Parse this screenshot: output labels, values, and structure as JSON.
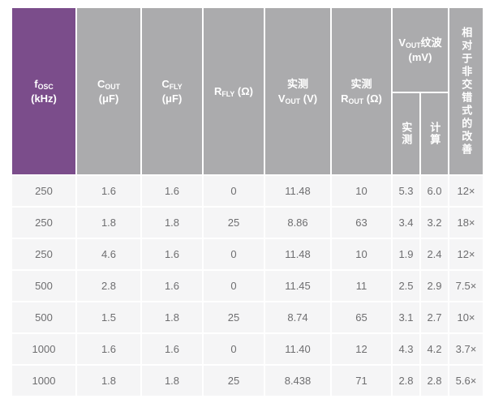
{
  "table": {
    "headers": {
      "fosc": {
        "base": "f",
        "sub": "OSC",
        "line2": "(kHz)"
      },
      "cout": {
        "base": "C",
        "sub": "OUT",
        "line2": "(μF)"
      },
      "cfly": {
        "base": "C",
        "sub": "FLY",
        "line2": "(μF)"
      },
      "rfly": {
        "base": "R",
        "sub": "FLY",
        "rest": " (Ω)"
      },
      "vout": {
        "line1": "实测",
        "base": "V",
        "sub": "OUT",
        "rest": " (V)"
      },
      "rout": {
        "line1": "实测",
        "base": "R",
        "sub": "OUT",
        "rest": " (Ω)"
      },
      "ripple": {
        "base": "V",
        "sub": "OUT",
        "rest": "纹波 (mV)"
      },
      "ripple_measured": "实测",
      "ripple_calculated": "计算",
      "improvement": "相对于非交错式的改善"
    },
    "rows": [
      [
        "250",
        "1.6",
        "1.6",
        "0",
        "11.48",
        "10",
        "5.3",
        "6.0",
        "12×"
      ],
      [
        "250",
        "1.8",
        "1.8",
        "25",
        "8.86",
        "63",
        "3.4",
        "3.2",
        "18×"
      ],
      [
        "250",
        "4.6",
        "1.6",
        "0",
        "11.48",
        "10",
        "1.9",
        "2.4",
        "12×"
      ],
      [
        "500",
        "2.8",
        "1.6",
        "0",
        "11.45",
        "11",
        "2.5",
        "2.9",
        "7.5×"
      ],
      [
        "500",
        "1.5",
        "1.8",
        "25",
        "8.74",
        "65",
        "3.1",
        "2.7",
        "10×"
      ],
      [
        "1000",
        "1.6",
        "1.6",
        "0",
        "11.40",
        "12",
        "4.3",
        "4.2",
        "3.7×"
      ],
      [
        "1000",
        "1.8",
        "1.8",
        "25",
        "8.438",
        "71",
        "2.8",
        "2.8",
        "5.6×"
      ]
    ],
    "colors": {
      "accent_purple": "#7B4D8B",
      "header_gray": "#ABABAD",
      "row_background": "#F5F5F6",
      "cell_text": "#6E6E70"
    }
  }
}
